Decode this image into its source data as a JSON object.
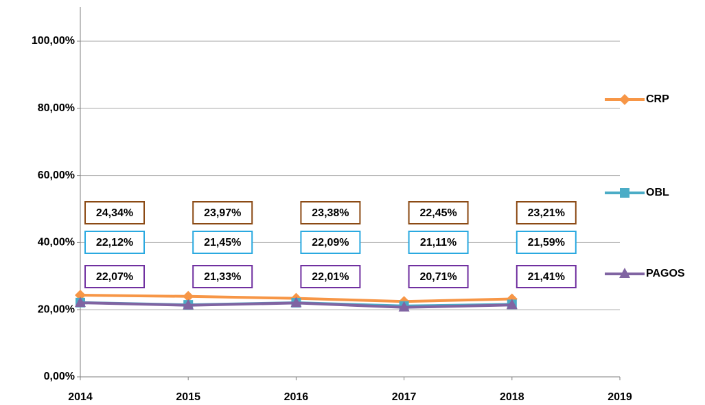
{
  "chart_data": {
    "type": "line",
    "x": [
      2014,
      2015,
      2016,
      2017,
      2018
    ],
    "xlim": [
      2014,
      2019
    ],
    "xticks": [
      2014,
      2015,
      2016,
      2017,
      2018,
      2019
    ],
    "ylim": [
      0,
      100
    ],
    "yticks": [
      {
        "value": 0,
        "label": "0,00%"
      },
      {
        "value": 20,
        "label": "20,00%"
      },
      {
        "value": 40,
        "label": "40,00%"
      },
      {
        "value": 60,
        "label": "60,00%"
      },
      {
        "value": 80,
        "label": "80,00%"
      },
      {
        "value": 100,
        "label": "100,00%"
      }
    ],
    "grid": true,
    "legend": "right",
    "series": [
      {
        "name": "CRP",
        "color": "#f79646",
        "marker": "diamond",
        "label_border": "#8b4a14",
        "values": [
          24.34,
          23.97,
          23.38,
          22.45,
          23.21
        ],
        "value_labels": [
          "24,34%",
          "23,97%",
          "23,38%",
          "22,45%",
          "23,21%"
        ]
      },
      {
        "name": "OBL",
        "color": "#4bacc6",
        "marker": "square",
        "label_border": "#2aa9e0",
        "values": [
          22.12,
          21.45,
          22.09,
          21.11,
          21.59
        ],
        "value_labels": [
          "22,12%",
          "21,45%",
          "22,09%",
          "21,11%",
          "21,59%"
        ]
      },
      {
        "name": "PAGOS",
        "color": "#8064a2",
        "marker": "triangle",
        "label_border": "#7030a0",
        "values": [
          22.07,
          21.33,
          22.01,
          20.71,
          21.41
        ],
        "value_labels": [
          "22,07%",
          "21,33%",
          "22,01%",
          "20,71%",
          "21,41%"
        ]
      }
    ]
  }
}
